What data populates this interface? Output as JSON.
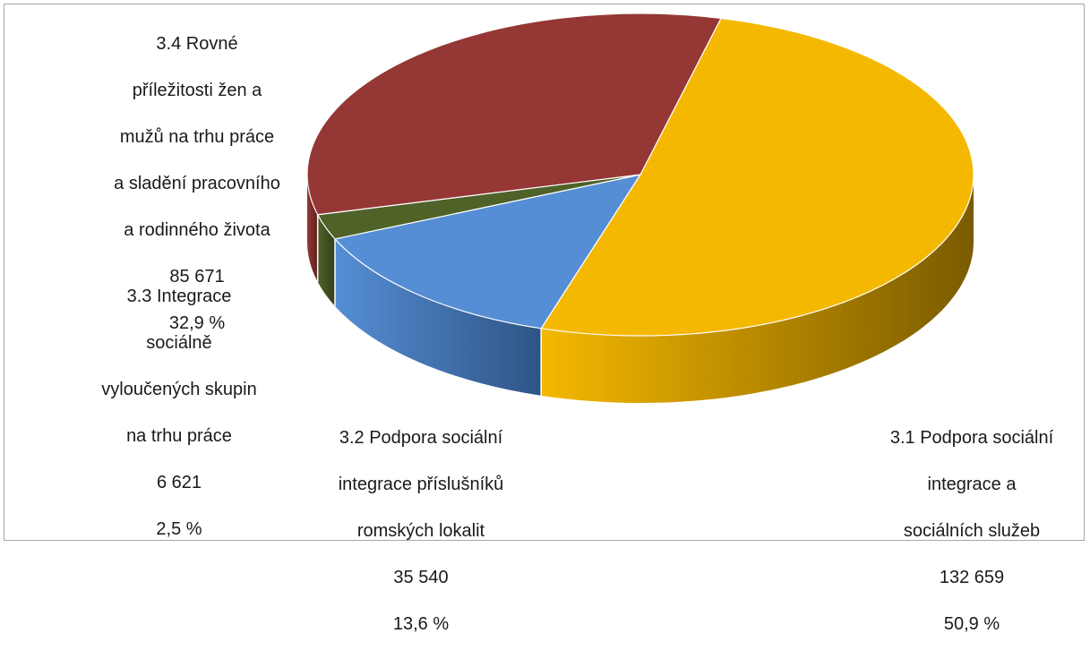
{
  "chart_data": {
    "type": "pie",
    "title": "",
    "slices": [
      {
        "label": "3.1 Podpora sociální integrace a sociálních služeb",
        "label_lines": [
          "3.1 Podpora sociální",
          "integrace a",
          "sociálních služeb"
        ],
        "value": 132659,
        "value_text": "132 659",
        "percent": 50.9,
        "percent_text": "50,9 %",
        "color": "#F5B800",
        "side_color": "#7A5B00"
      },
      {
        "label": "3.2 Podpora sociální integrace příslušníků romských lokalit",
        "label_lines": [
          "3.2 Podpora sociální",
          "integrace příslušníků",
          "romských lokalit"
        ],
        "value": 35540,
        "value_text": "35 540",
        "percent": 13.6,
        "percent_text": "13,6 %",
        "color": "#558ED5",
        "side_color": "#2E5485"
      },
      {
        "label": "3.3 Integrace sociálně vyloučených skupin na trhu práce",
        "label_lines": [
          "3.3 Integrace",
          "sociálně",
          "vyloučených skupin",
          "na trhu práce"
        ],
        "value": 6621,
        "value_text": "6 621",
        "percent": 2.5,
        "percent_text": "2,5 %",
        "color": "#4F6228",
        "side_color": "#33401A"
      },
      {
        "label": "3.4 Rovné příležitosti žen a mužů na trhu práce a sladění pracovního a rodinného života",
        "label_lines": [
          "3.4 Rovné",
          "příležitosti žen a",
          "mužů na trhu práce",
          "a sladění pracovního",
          "a rodinného života"
        ],
        "value": 85671,
        "value_text": "85 671",
        "percent": 32.9,
        "percent_text": "32,9 %",
        "color": "#953735",
        "side_color": "#5E2120"
      }
    ],
    "legend": "none"
  }
}
